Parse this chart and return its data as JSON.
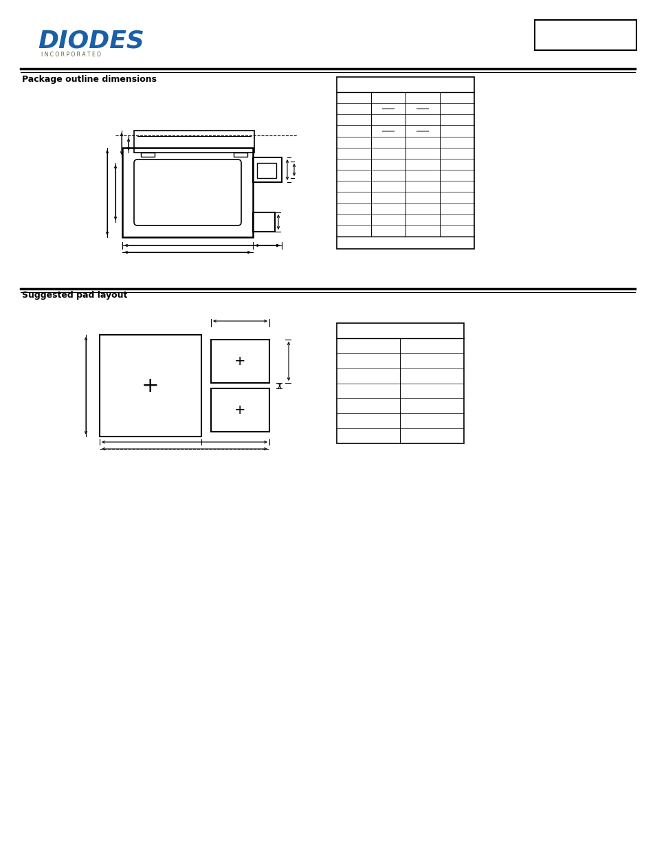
{
  "bg_color": "#ffffff",
  "section1_title": "Package outline dimensions",
  "section2_title": "Suggested pad layout",
  "logo_line1": "DIODES",
  "logo_line2": "I N C O R P O R A T E D",
  "table1_n_rows": 13,
  "table1_n_cols": 4,
  "table1_dash_rows": [
    9,
    11
  ],
  "table1_dash_cols": [
    1,
    2
  ],
  "table2_n_rows": 7,
  "table2_n_cols": 2
}
